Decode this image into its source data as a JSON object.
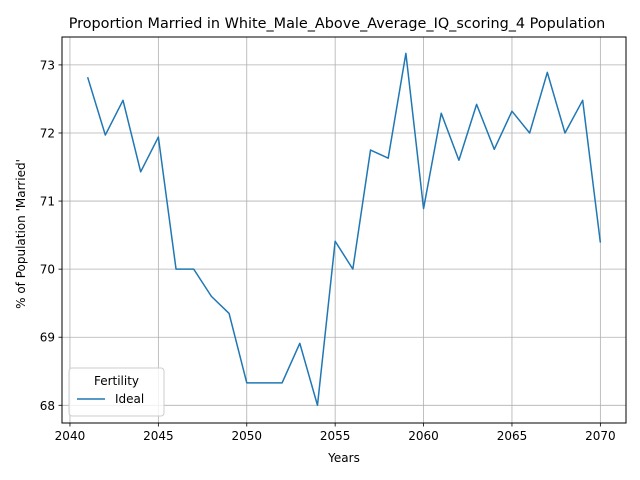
{
  "chart_data": {
    "type": "line",
    "title": "Proportion Married in White_Male_Above_Average_IQ_scoring_4 Population",
    "xlabel": "Years",
    "ylabel": "% of Population 'Married'",
    "xlim": [
      2039.55,
      2071.45
    ],
    "ylim": [
      67.74,
      73.41
    ],
    "xticks": [
      2040,
      2045,
      2050,
      2055,
      2060,
      2065,
      2070
    ],
    "yticks": [
      68,
      69,
      70,
      71,
      72,
      73
    ],
    "grid": true,
    "legend": {
      "title": "Fertility",
      "placement": "lower-left"
    },
    "series": [
      {
        "name": "Ideal",
        "color": "#1f77b4",
        "x": [
          2041,
          2042,
          2043,
          2044,
          2045,
          2046,
          2047,
          2048,
          2049,
          2050,
          2051,
          2052,
          2053,
          2054,
          2055,
          2056,
          2057,
          2058,
          2059,
          2060,
          2061,
          2062,
          2063,
          2064,
          2065,
          2066,
          2067,
          2068,
          2069,
          2070
        ],
        "y": [
          72.82,
          71.97,
          72.48,
          71.43,
          71.94,
          70.0,
          70.0,
          69.6,
          69.35,
          68.33,
          68.33,
          68.33,
          68.91,
          68.0,
          70.41,
          70.0,
          71.75,
          71.63,
          73.17,
          70.89,
          72.29,
          71.6,
          72.42,
          71.76,
          72.32,
          72.0,
          72.89,
          72.0,
          72.48,
          70.39
        ]
      }
    ]
  }
}
